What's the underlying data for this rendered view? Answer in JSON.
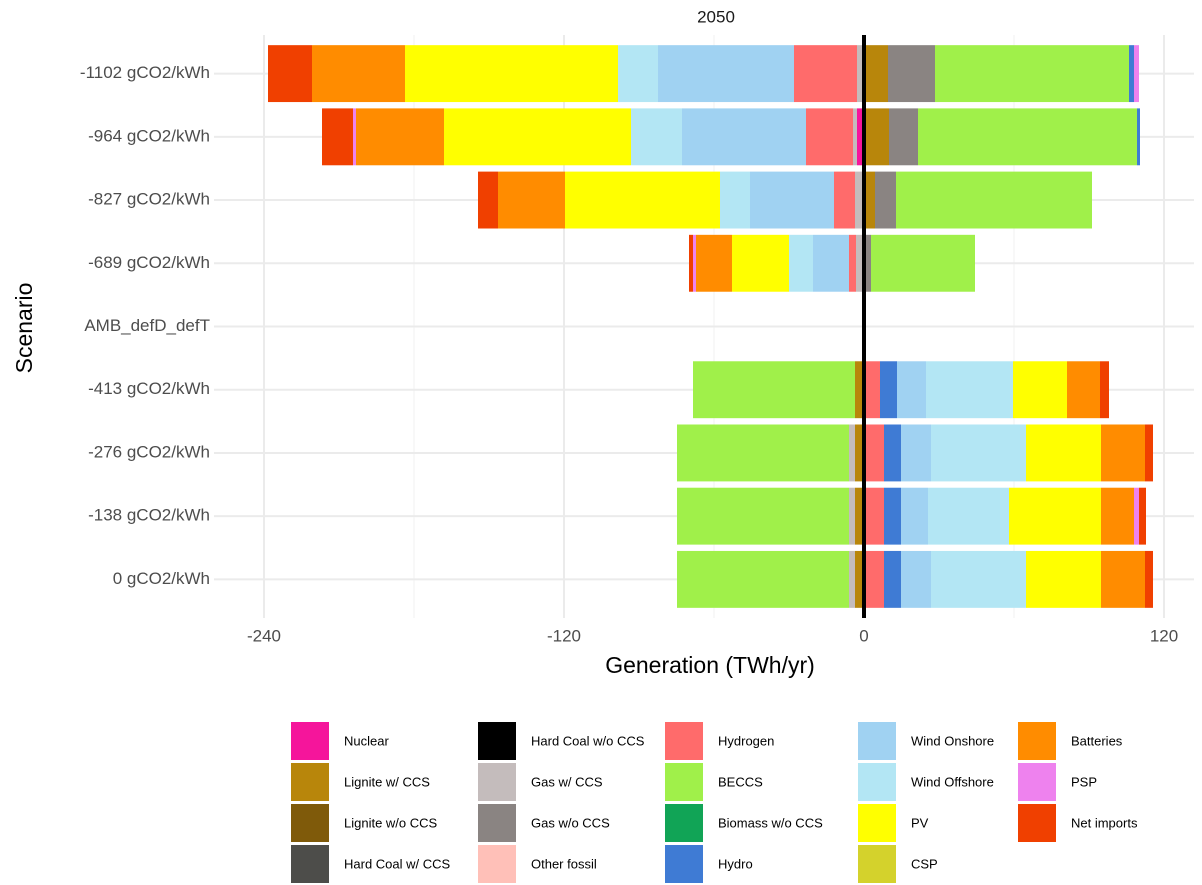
{
  "chart_data": {
    "type": "bar",
    "orientation": "horizontal",
    "stacked": true,
    "title": "2050",
    "xlabel": "Generation (TWh/yr)",
    "ylabel": "Scenario",
    "categories": [
      "-1102 gCO2/kWh",
      "-964 gCO2/kWh",
      "-827 gCO2/kWh",
      "-689 gCO2/kWh",
      "AMB_defD_defT",
      "-413 gCO2/kWh",
      "-276 gCO2/kWh",
      "-138 gCO2/kWh",
      "0 gCO2/kWh"
    ],
    "xlim": [
      -260,
      132
    ],
    "xticks": [
      -240,
      -120,
      0,
      120
    ],
    "grid": true,
    "legend": "bottom",
    "series": [
      {
        "name": "Nuclear",
        "color": "#f5159b",
        "values": [
          null,
          -2.8,
          null,
          null,
          null,
          null,
          null,
          null,
          null
        ]
      },
      {
        "name": "Lignite w/ CCS",
        "color": "#b8860b",
        "values": [
          9.6,
          10,
          4.4,
          null,
          null,
          -3.6,
          -3.6,
          -3.6,
          -3.6
        ]
      },
      {
        "name": "Lignite w/o CCS",
        "color": "#7f5a0a",
        "values": [
          null,
          null,
          null,
          null,
          null,
          null,
          null,
          null,
          null
        ]
      },
      {
        "name": "Hard Coal w/ CCS",
        "color": "#4d4d4a",
        "values": [
          null,
          null,
          null,
          null,
          null,
          null,
          null,
          null,
          null
        ]
      },
      {
        "name": "Hard Coal w/o CCS",
        "color": "#000000",
        "values": [
          null,
          null,
          null,
          null,
          null,
          null,
          null,
          null,
          null
        ]
      },
      {
        "name": "Gas w/ CCS",
        "color": "#c4bcbc",
        "values": [
          -2.8,
          -1.6,
          -3.6,
          -3.2,
          null,
          null,
          -2.4,
          -2.4,
          -2.4
        ]
      },
      {
        "name": "Gas w/o CCS",
        "color": "#8a8482",
        "values": [
          18.8,
          11.6,
          8.4,
          2.8,
          null,
          null,
          null,
          null,
          null
        ]
      },
      {
        "name": "Other fossil",
        "color": "#ffc0b8",
        "values": [
          null,
          null,
          null,
          null,
          null,
          null,
          null,
          null,
          null
        ]
      },
      {
        "name": "Hydrogen",
        "color": "#ff6b6b",
        "values": [
          -25.2,
          -18.8,
          -8.4,
          -2.8,
          null,
          6.4,
          8,
          8,
          8
        ]
      },
      {
        "name": "BECCS",
        "color": "#a0f04a",
        "values": [
          77.6,
          87.6,
          78.4,
          41.6,
          null,
          -64.8,
          -68.8,
          -68.8,
          -68.8
        ]
      },
      {
        "name": "Biomass w/o CCS",
        "color": "#11a456",
        "values": [
          null,
          null,
          null,
          null,
          null,
          null,
          null,
          null,
          null
        ]
      },
      {
        "name": "Hydro",
        "color": "#3f7bd4",
        "values": [
          2,
          1.2,
          null,
          null,
          null,
          6.8,
          6.8,
          6.8,
          6.8
        ]
      },
      {
        "name": "Wind Onshore",
        "color": "#a0d2f2",
        "values": [
          -54.4,
          -49.6,
          -33.6,
          -14.4,
          null,
          11.6,
          12,
          10.8,
          12
        ]
      },
      {
        "name": "Wind Offshore",
        "color": "#b3e6f4",
        "values": [
          -16,
          -20.4,
          -12,
          -9.6,
          null,
          34.8,
          38,
          32.4,
          38
        ]
      },
      {
        "name": "PV",
        "color": "#ffff00",
        "values": [
          -85.2,
          -74.8,
          -62,
          -22.8,
          null,
          21.6,
          30,
          36.8,
          30
        ]
      },
      {
        "name": "CSP",
        "color": "#d4d22c",
        "values": [
          null,
          null,
          null,
          null,
          null,
          null,
          null,
          null,
          null
        ]
      },
      {
        "name": "Batteries",
        "color": "#ff8c00",
        "values": [
          -37.2,
          -35.2,
          -26.8,
          -14.4,
          null,
          13.2,
          17.6,
          13.2,
          17.6
        ]
      },
      {
        "name": "PSP",
        "color": "#ee82ee",
        "values": [
          2,
          -1.2,
          null,
          -1.2,
          null,
          null,
          null,
          2,
          null
        ]
      },
      {
        "name": "Net imports",
        "color": "#f04000",
        "values": [
          -17.6,
          -12.4,
          -8,
          -1.6,
          null,
          3.6,
          3.2,
          2.8,
          3.2
        ]
      }
    ]
  }
}
